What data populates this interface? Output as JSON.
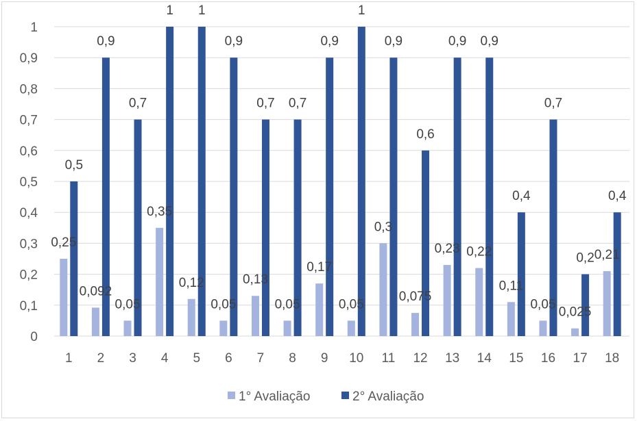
{
  "chart_data": {
    "type": "bar",
    "categories": [
      "1",
      "2",
      "3",
      "4",
      "5",
      "6",
      "7",
      "8",
      "9",
      "10",
      "11",
      "12",
      "13",
      "14",
      "15",
      "16",
      "17",
      "18"
    ],
    "series": [
      {
        "name": "1° Avaliação",
        "color": "#a5b4df",
        "values": [
          0.25,
          0.092,
          0.05,
          0.35,
          0.12,
          0.05,
          0.13,
          0.05,
          0.17,
          0.05,
          0.3,
          0.075,
          0.23,
          0.22,
          0.11,
          0.05,
          0.025,
          0.21
        ],
        "labels": [
          "0,25",
          "0,092",
          "0,05",
          "0,35",
          "0,12",
          "0,05",
          "0,13",
          "0,05",
          "0,17",
          "0,05",
          "0,3",
          "0,075",
          "0,23",
          "0,22",
          "0,11",
          "0,05",
          "0,025",
          "0,21"
        ]
      },
      {
        "name": "2° Avaliação",
        "color": "#2f5597",
        "values": [
          0.5,
          0.9,
          0.7,
          1,
          1,
          0.9,
          0.7,
          0.7,
          0.9,
          1,
          0.9,
          0.6,
          0.9,
          0.9,
          0.4,
          0.7,
          0.2,
          0.4
        ],
        "labels": [
          "0,5",
          "0,9",
          "0,7",
          "1",
          "1",
          "0,9",
          "0,7",
          "0,7",
          "0,9",
          "1",
          "0,9",
          "0,6",
          "0,9",
          "0,9",
          "0,4",
          "0,7",
          "0,2",
          "0,4"
        ]
      }
    ],
    "ylim": [
      0,
      1
    ],
    "yticks": [
      0,
      0.1,
      0.2,
      0.3,
      0.4,
      0.5,
      0.6,
      0.7,
      0.8,
      0.9,
      1
    ],
    "ytick_labels": [
      "0",
      "0,1",
      "0,2",
      "0,3",
      "0,4",
      "0,5",
      "0,6",
      "0,7",
      "0,8",
      "0,9",
      "1"
    ],
    "grid": true,
    "grid_color": "#d9d9d9",
    "legend_position": "bottom",
    "title": "",
    "xlabel": "",
    "ylabel": ""
  }
}
